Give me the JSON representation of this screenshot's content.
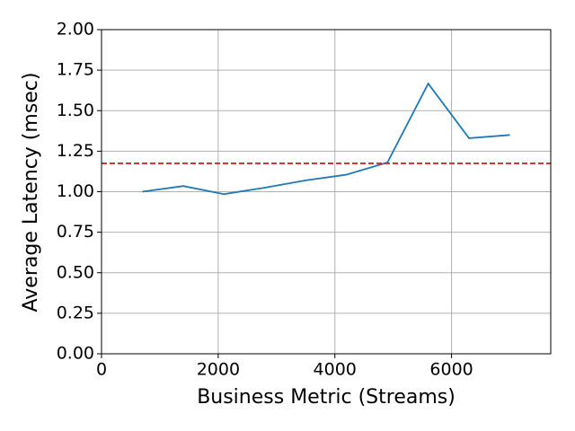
{
  "chart_data": {
    "type": "line",
    "x_label": "Business Metric (Streams)",
    "y_label": "Average Latency (msec)",
    "x": [
      700,
      1400,
      2100,
      2800,
      3500,
      4200,
      4900,
      5600,
      6300,
      7000
    ],
    "series": [
      {
        "color": "#1f77b4",
        "values": [
          1.0,
          1.035,
          0.985,
          1.025,
          1.07,
          1.105,
          1.18,
          1.667,
          1.33,
          1.35
        ]
      }
    ],
    "reference_line": {
      "value": 1.175,
      "color": "#d62728",
      "dashed": true
    },
    "xlim": [
      0,
      7700
    ],
    "xticks": [
      0,
      2000,
      4000,
      6000
    ],
    "ylim": [
      0,
      2
    ],
    "yticks": [
      {
        "value": 0,
        "label": "0.00"
      },
      {
        "value": 0.25,
        "label": "0.25"
      },
      {
        "value": 0.5,
        "label": "0.50"
      },
      {
        "value": 0.75,
        "label": "0.75"
      },
      {
        "value": 1,
        "label": "1.00"
      },
      {
        "value": 1.25,
        "label": "1.25"
      },
      {
        "value": 1.5,
        "label": "1.50"
      },
      {
        "value": 1.75,
        "label": "1.75"
      },
      {
        "value": 2,
        "label": "2.00"
      }
    ],
    "grid": true
  }
}
